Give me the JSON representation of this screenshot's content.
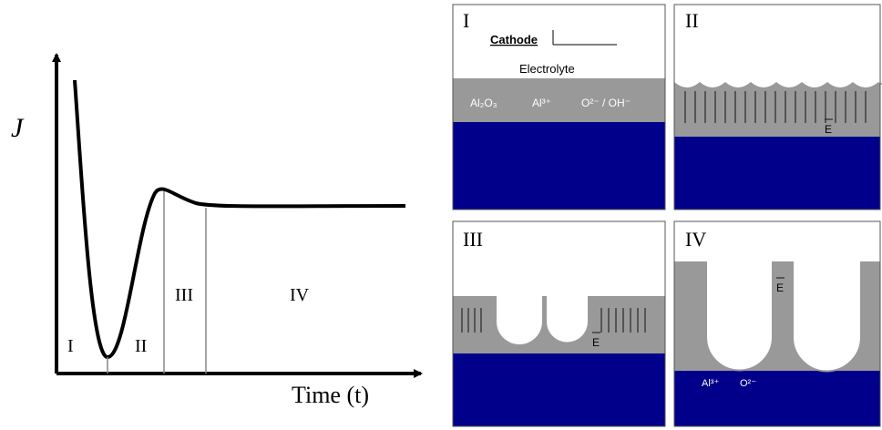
{
  "plot": {
    "y_label": "J",
    "x_label": "Time (t)",
    "stages": [
      "I",
      "II",
      "III",
      "IV"
    ]
  },
  "panels": [
    {
      "label": "I",
      "texts": [
        "Cathode",
        "Electrolyte",
        "Al₂O₃",
        "Al³⁺",
        "O²⁻ / OH⁻"
      ]
    },
    {
      "label": "II",
      "texts": [
        "E"
      ]
    },
    {
      "label": "III",
      "texts": [
        "E"
      ]
    },
    {
      "label": "IV",
      "texts": [
        "E",
        "Al³⁺",
        "O²⁻"
      ]
    }
  ]
}
